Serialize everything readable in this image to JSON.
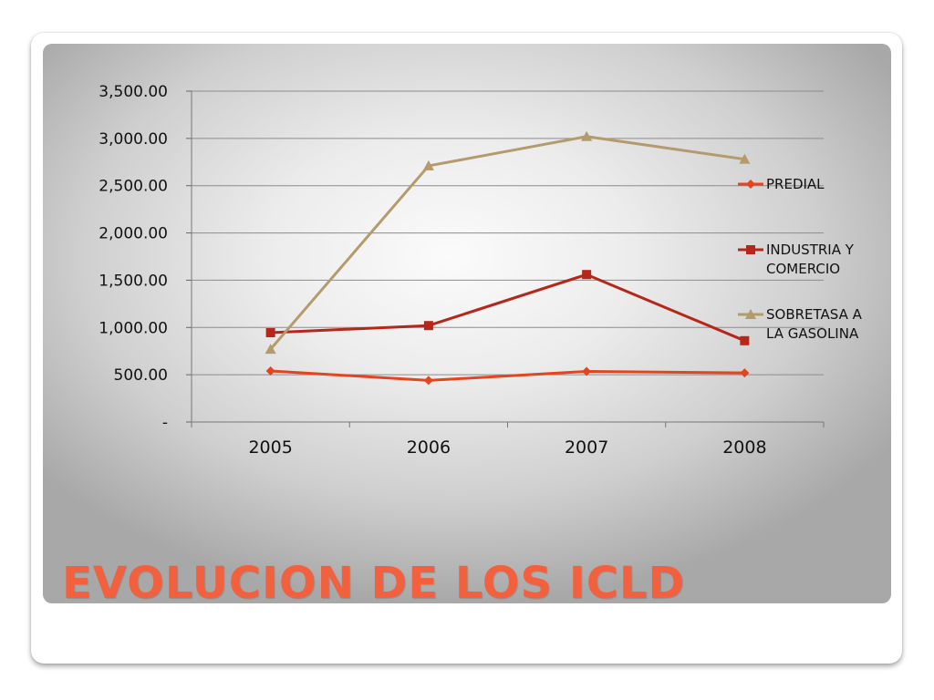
{
  "slide": {
    "title": "EVOLUCION DE LOS ICLD"
  },
  "colors": {
    "title": "#f2603e",
    "predial": "#e2451f",
    "industria": "#b5271a",
    "sobretasa": "#b39b6b",
    "gridline": "#8c8c8c"
  },
  "chart_data": {
    "type": "line",
    "title": "",
    "xlabel": "",
    "ylabel": "",
    "categories": [
      "2005",
      "2006",
      "2007",
      "2008"
    ],
    "ylim": [
      0,
      3500
    ],
    "yticks": [
      0,
      500,
      1000,
      1500,
      2000,
      2500,
      3000,
      3500
    ],
    "ytick_labels": [
      "-",
      "500.00",
      "1,000.00",
      "1,500.00",
      "2,000.00",
      "2,500.00",
      "3,000.00",
      "3,500.00"
    ],
    "grid": true,
    "legend_position": "right",
    "series": [
      {
        "name": "PREDIAL",
        "legend_lines": [
          "PREDIAL"
        ],
        "marker": "diamond",
        "color": "#e2451f",
        "values": [
          540,
          440,
          535,
          520
        ]
      },
      {
        "name": "INDUSTRIA Y COMERCIO",
        "legend_lines": [
          "INDUSTRIA Y",
          "COMERCIO"
        ],
        "marker": "square",
        "color": "#b5271a",
        "values": [
          945,
          1020,
          1560,
          860
        ]
      },
      {
        "name": "SOBRETASA A LA GASOLINA",
        "legend_lines": [
          "SOBRETASA A",
          "LA GASOLINA"
        ],
        "marker": "triangle",
        "color": "#b39b6b",
        "values": [
          770,
          2710,
          3020,
          2780
        ]
      }
    ]
  }
}
